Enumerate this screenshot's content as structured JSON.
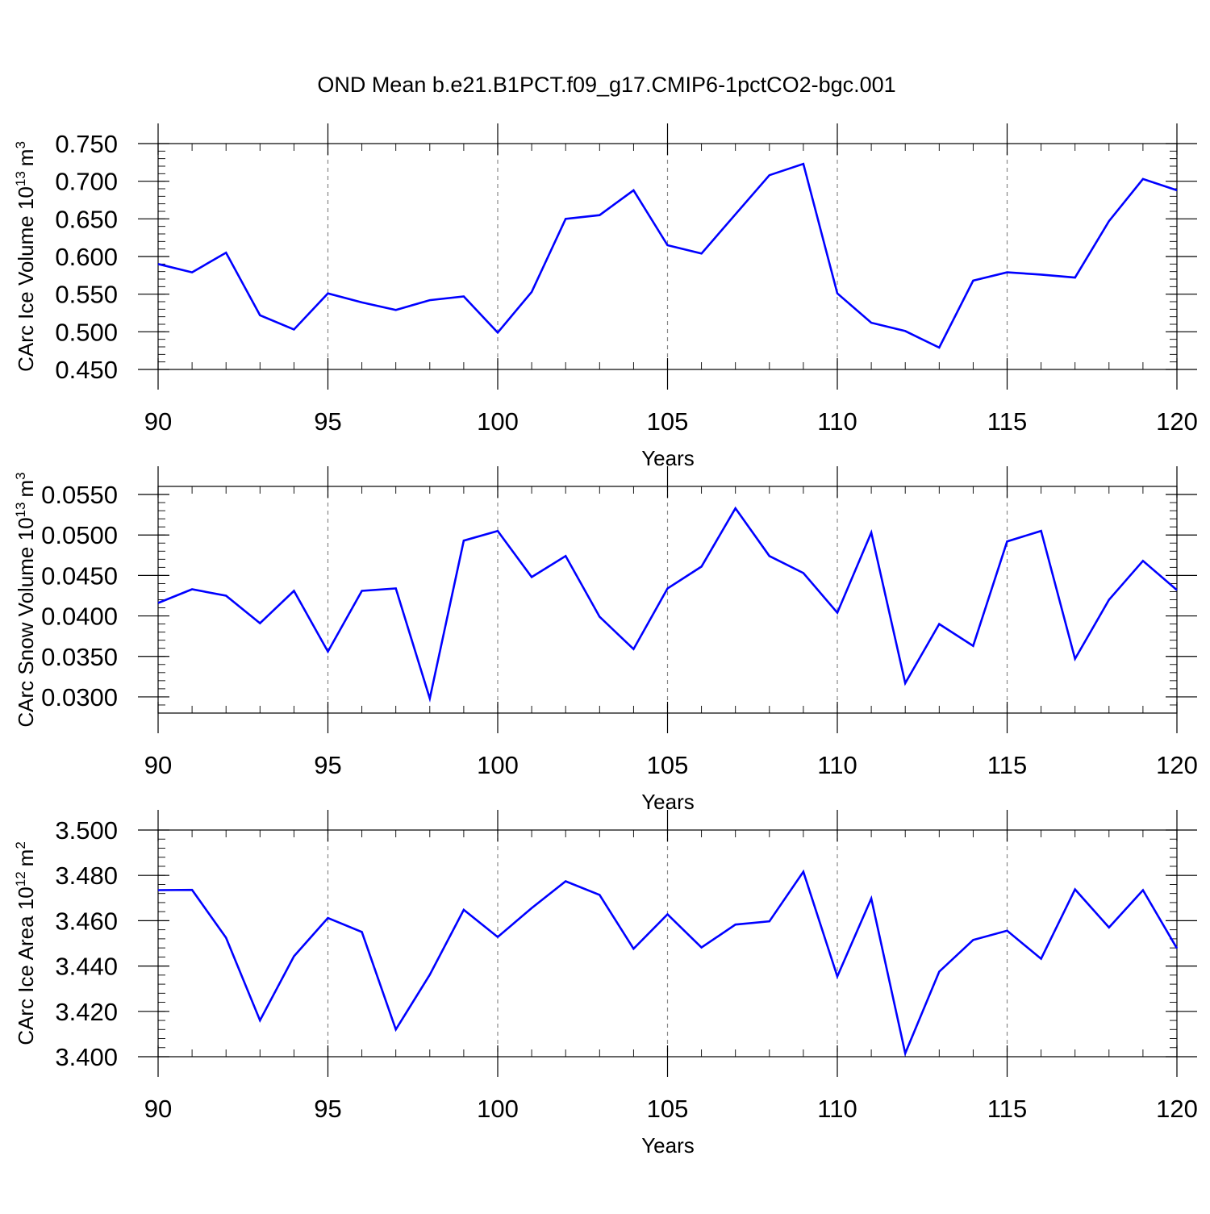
{
  "title": "OND Mean b.e21.B1PCT.f09_g17.CMIP6-1pctCO2-bgc.001",
  "colors": {
    "series": "#0000ff",
    "grid": "#888888",
    "axes": "#000000"
  },
  "chart_data": [
    {
      "type": "line",
      "xlabel": "Years",
      "ylabel": {
        "base": "CArc Ice Volume 10",
        "exp": "13",
        "unit": " m",
        "unit_exp": "3"
      },
      "xlim": [
        90,
        120
      ],
      "ylim": [
        0.45,
        0.75
      ],
      "x_ticks": [
        90,
        95,
        100,
        105,
        110,
        115,
        120
      ],
      "x_tick_labels": [
        "90",
        "95",
        "100",
        "105",
        "110",
        "115",
        "120"
      ],
      "y_ticks": [
        0.45,
        0.5,
        0.55,
        0.6,
        0.65,
        0.7,
        0.75
      ],
      "y_tick_labels": [
        "0.450",
        "0.500",
        "0.550",
        "0.600",
        "0.650",
        "0.700",
        "0.750"
      ],
      "y_minor_step": 0.01,
      "grid": "vertical dashed at major x ticks",
      "x": [
        90,
        91,
        92,
        93,
        94,
        95,
        96,
        97,
        98,
        99,
        100,
        101,
        102,
        103,
        104,
        105,
        106,
        107,
        108,
        109,
        110,
        111,
        112,
        113,
        114,
        115,
        116,
        117,
        118,
        119,
        120
      ],
      "values": [
        0.59,
        0.579,
        0.605,
        0.522,
        0.503,
        0.551,
        0.539,
        0.529,
        0.542,
        0.547,
        0.499,
        0.553,
        0.65,
        0.655,
        0.688,
        0.615,
        0.604,
        0.656,
        0.708,
        0.723,
        0.551,
        0.512,
        0.501,
        0.479,
        0.568,
        0.579,
        0.576,
        0.572,
        0.647,
        0.703,
        0.688
      ]
    },
    {
      "type": "line",
      "xlabel": "Years",
      "ylabel": {
        "base": "CArc Snow Volume 10",
        "exp": "13",
        "unit": " m",
        "unit_exp": "3"
      },
      "xlim": [
        90,
        120
      ],
      "ylim": [
        0.028,
        0.056
      ],
      "x_ticks": [
        90,
        95,
        100,
        105,
        110,
        115,
        120
      ],
      "x_tick_labels": [
        "90",
        "95",
        "100",
        "105",
        "110",
        "115",
        "120"
      ],
      "y_ticks": [
        0.03,
        0.035,
        0.04,
        0.045,
        0.05,
        0.055
      ],
      "y_tick_labels": [
        "0.0300",
        "0.0350",
        "0.0400",
        "0.0450",
        "0.0500",
        "0.0550"
      ],
      "y_minor_step": 0.001,
      "grid": "vertical dashed at major x ticks",
      "x": [
        90,
        91,
        92,
        93,
        94,
        95,
        96,
        97,
        98,
        99,
        100,
        101,
        102,
        103,
        104,
        105,
        106,
        107,
        108,
        109,
        110,
        111,
        112,
        113,
        114,
        115,
        116,
        117,
        118,
        119,
        120
      ],
      "values": [
        0.0416,
        0.0433,
        0.0425,
        0.0391,
        0.0431,
        0.0356,
        0.0431,
        0.0434,
        0.0298,
        0.0493,
        0.0505,
        0.0448,
        0.0474,
        0.0399,
        0.0359,
        0.0434,
        0.0461,
        0.0533,
        0.0474,
        0.0453,
        0.0404,
        0.0503,
        0.0317,
        0.039,
        0.0363,
        0.0492,
        0.0505,
        0.0347,
        0.042,
        0.0468,
        0.0432
      ]
    },
    {
      "type": "line",
      "xlabel": "Years",
      "ylabel": {
        "base": "CArc Ice Area 10",
        "exp": "12",
        "unit": " m",
        "unit_exp": "2"
      },
      "xlim": [
        90,
        120
      ],
      "ylim": [
        3.4,
        3.5
      ],
      "x_ticks": [
        90,
        95,
        100,
        105,
        110,
        115,
        120
      ],
      "x_tick_labels": [
        "90",
        "95",
        "100",
        "105",
        "110",
        "115",
        "120"
      ],
      "y_ticks": [
        3.4,
        3.42,
        3.44,
        3.46,
        3.48,
        3.5
      ],
      "y_tick_labels": [
        "3.400",
        "3.420",
        "3.440",
        "3.460",
        "3.480",
        "3.500"
      ],
      "y_minor_step": 0.004,
      "grid": "vertical dashed at major x ticks",
      "x": [
        90,
        91,
        92,
        93,
        94,
        95,
        96,
        97,
        98,
        99,
        100,
        101,
        102,
        103,
        104,
        105,
        106,
        107,
        108,
        109,
        110,
        111,
        112,
        113,
        114,
        115,
        116,
        117,
        118,
        119,
        120
      ],
      "values": [
        3.4735,
        3.4736,
        3.4525,
        3.416,
        3.4443,
        3.4612,
        3.455,
        3.412,
        3.4362,
        3.4648,
        3.4528,
        3.4656,
        3.4774,
        3.4714,
        3.4476,
        3.4628,
        3.4482,
        3.4583,
        3.4597,
        3.4816,
        3.4354,
        3.4698,
        3.4015,
        3.4375,
        3.4515,
        3.4556,
        3.4432,
        3.4738,
        3.457,
        3.4735,
        3.4478
      ]
    }
  ]
}
